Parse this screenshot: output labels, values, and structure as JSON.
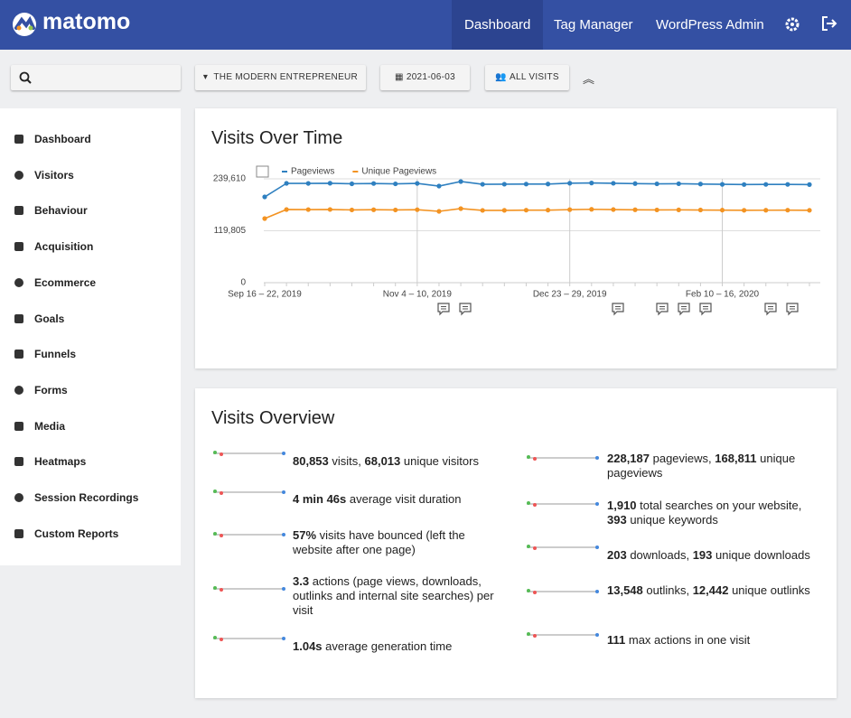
{
  "header": {
    "logo": "matomo",
    "nav": [
      "Dashboard",
      "Tag Manager",
      "WordPress Admin"
    ]
  },
  "toolbar": {
    "site": "THE MODERN ENTREPRENEUR",
    "date": "2021-06-03",
    "segment": "ALL VISITS"
  },
  "sidebar": [
    "Dashboard",
    "Visitors",
    "Behaviour",
    "Acquisition",
    "Ecommerce",
    "Goals",
    "Funnels",
    "Forms",
    "Media",
    "Heatmaps",
    "Session Recordings",
    "Custom Reports"
  ],
  "chart_data": {
    "type": "line",
    "title": "Visits Over Time",
    "categories": [
      "Sep 16 – 22, 2019",
      null,
      null,
      null,
      null,
      null,
      null,
      "Nov 4 – 10, 2019",
      null,
      null,
      null,
      null,
      null,
      null,
      "Dec 23 – 29, 2019",
      null,
      null,
      null,
      null,
      null,
      null,
      "Feb 10 – 16, 2020",
      null,
      null,
      null,
      null
    ],
    "series": [
      {
        "name": "Pageviews",
        "color": "#2f80c0",
        "values": [
          197900,
          229200,
          229000,
          229400,
          228200,
          228800,
          228000,
          229000,
          222900,
          233400,
          227000,
          227200,
          227500,
          227600,
          229500,
          230000,
          229300,
          228600,
          228000,
          228300,
          227600,
          226900,
          226500,
          226700,
          226700,
          226300
        ]
      },
      {
        "name": "Unique Pageviews",
        "color": "#f39322",
        "values": [
          147900,
          168800,
          168600,
          168900,
          167900,
          168300,
          167800,
          168400,
          164600,
          170900,
          166800,
          166900,
          167300,
          167400,
          168500,
          169300,
          168700,
          168200,
          167900,
          168000,
          167700,
          167400,
          167000,
          167200,
          167300,
          167000
        ]
      }
    ],
    "ylim": [
      0,
      239610
    ],
    "yticks": [
      0,
      {
        "value": 119805,
        "label": "119,805"
      },
      {
        "value": 239610,
        "label": "239,610"
      }
    ],
    "grid": true
  },
  "overview": {
    "title": "Visits Overview",
    "left": [
      [
        "80,853",
        " visits, ",
        "68,013",
        " unique visitors"
      ],
      [
        "4 min 46s",
        " average visit duration"
      ],
      [
        "57%",
        " visits have bounced (left the website after one page)"
      ],
      [
        "3.3",
        " actions (page views, downloads, outlinks and internal site searches) per visit"
      ],
      [
        "1.04s",
        " average generation time"
      ]
    ],
    "right": [
      [
        "228,187",
        " pageviews, ",
        "168,811",
        " unique pageviews"
      ],
      [
        "1,910",
        " total searches on your website, ",
        "393",
        " unique keywords"
      ],
      [
        "203",
        " downloads, ",
        "193",
        " unique downloads"
      ],
      [
        "13,548",
        " outlinks, ",
        "12,442",
        " unique outlinks"
      ],
      [
        "111",
        " max actions in one visit"
      ]
    ]
  }
}
